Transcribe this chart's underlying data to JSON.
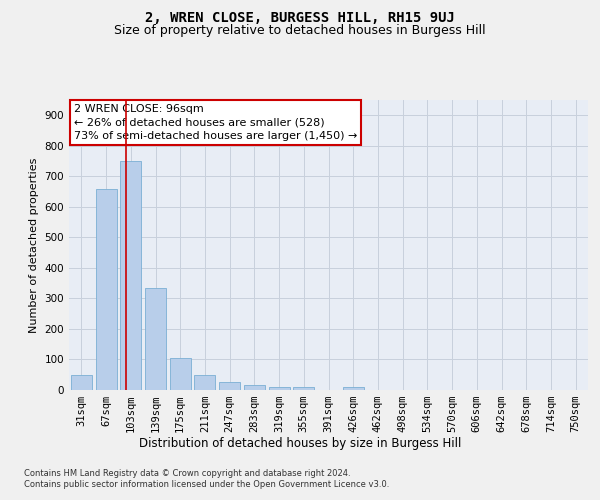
{
  "title": "2, WREN CLOSE, BURGESS HILL, RH15 9UJ",
  "subtitle": "Size of property relative to detached houses in Burgess Hill",
  "xlabel": "Distribution of detached houses by size in Burgess Hill",
  "ylabel": "Number of detached properties",
  "footer_line1": "Contains HM Land Registry data © Crown copyright and database right 2024.",
  "footer_line2": "Contains public sector information licensed under the Open Government Licence v3.0.",
  "categories": [
    "31sqm",
    "67sqm",
    "103sqm",
    "139sqm",
    "175sqm",
    "211sqm",
    "247sqm",
    "283sqm",
    "319sqm",
    "355sqm",
    "391sqm",
    "426sqm",
    "462sqm",
    "498sqm",
    "534sqm",
    "570sqm",
    "606sqm",
    "642sqm",
    "678sqm",
    "714sqm",
    "750sqm"
  ],
  "values": [
    50,
    660,
    750,
    335,
    105,
    50,
    25,
    15,
    10,
    10,
    0,
    10,
    0,
    0,
    0,
    0,
    0,
    0,
    0,
    0,
    0
  ],
  "bar_color": "#b8ceea",
  "bar_edge_color": "#7bafd4",
  "red_line_x": 1.82,
  "annotation_text1": "2 WREN CLOSE: 96sqm",
  "annotation_text2": "← 26% of detached houses are smaller (528)",
  "annotation_text3": "73% of semi-detached houses are larger (1,450) →",
  "annotation_box_facecolor": "#ffffff",
  "annotation_border_color": "#cc0000",
  "red_line_color": "#cc0000",
  "ylim": [
    0,
    950
  ],
  "yticks": [
    0,
    100,
    200,
    300,
    400,
    500,
    600,
    700,
    800,
    900
  ],
  "grid_color": "#c8d0dc",
  "background_color": "#e8edf5",
  "fig_facecolor": "#f0f0f0",
  "title_fontsize": 10,
  "subtitle_fontsize": 9,
  "xlabel_fontsize": 8.5,
  "ylabel_fontsize": 8,
  "tick_fontsize": 7.5,
  "annotation_fontsize": 8,
  "footer_fontsize": 6
}
